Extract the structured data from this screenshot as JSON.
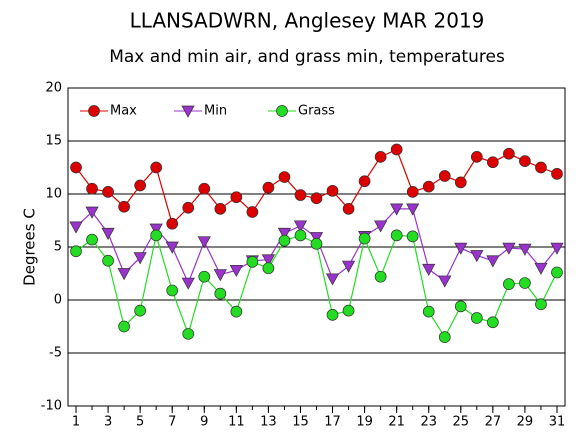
{
  "chart_data": {
    "type": "line",
    "title": "LLANSADWRN, Anglesey MAR 2019",
    "subtitle": "Max and min air, and grass min, temperatures",
    "y_label": "Degrees C",
    "x": [
      1,
      2,
      3,
      4,
      5,
      6,
      7,
      8,
      9,
      10,
      11,
      12,
      13,
      14,
      15,
      16,
      17,
      18,
      19,
      20,
      21,
      22,
      23,
      24,
      25,
      26,
      27,
      28,
      29,
      30,
      31
    ],
    "series": [
      {
        "name": "Max",
        "color": "#dd0000",
        "marker": "circle",
        "values": [
          12.5,
          10.5,
          10.2,
          8.8,
          10.8,
          12.5,
          7.2,
          8.7,
          10.5,
          8.6,
          9.7,
          8.3,
          10.6,
          11.6,
          9.9,
          9.6,
          10.3,
          8.6,
          11.2,
          13.5,
          14.2,
          10.2,
          10.7,
          11.7,
          11.1,
          13.5,
          13.0,
          13.8,
          13.1,
          12.5,
          11.9
        ]
      },
      {
        "name": "Min",
        "color": "#9933cc",
        "marker": "triangle-down",
        "values": [
          6.9,
          8.3,
          6.3,
          2.5,
          4.0,
          6.7,
          5.0,
          1.6,
          5.5,
          2.4,
          2.8,
          3.7,
          3.8,
          6.3,
          7.0,
          5.9,
          2.0,
          3.2,
          6.0,
          7.0,
          8.6,
          8.6,
          2.9,
          1.8,
          4.9,
          4.2,
          3.7,
          4.9,
          4.8,
          3.0,
          4.9
        ]
      },
      {
        "name": "Grass",
        "color": "#22dd22",
        "marker": "circle",
        "values": [
          4.6,
          5.7,
          3.7,
          -2.5,
          -1.0,
          6.1,
          0.9,
          -3.2,
          2.2,
          0.6,
          -1.1,
          3.6,
          3.0,
          5.6,
          6.1,
          5.3,
          -1.4,
          -1.0,
          5.8,
          2.2,
          6.1,
          6.0,
          -1.1,
          -3.5,
          -0.6,
          -1.7,
          -2.1,
          1.5,
          1.6,
          -0.4,
          2.6
        ]
      }
    ],
    "xlim": [
      0.5,
      31.5
    ],
    "xticks": [
      1,
      3,
      5,
      7,
      9,
      11,
      13,
      15,
      17,
      19,
      21,
      23,
      25,
      27,
      29,
      31
    ],
    "ylim": [
      -10,
      20
    ],
    "yticks": [
      -10,
      -5,
      0,
      5,
      10,
      15,
      20
    ],
    "grid": true,
    "legend": "upper left"
  }
}
